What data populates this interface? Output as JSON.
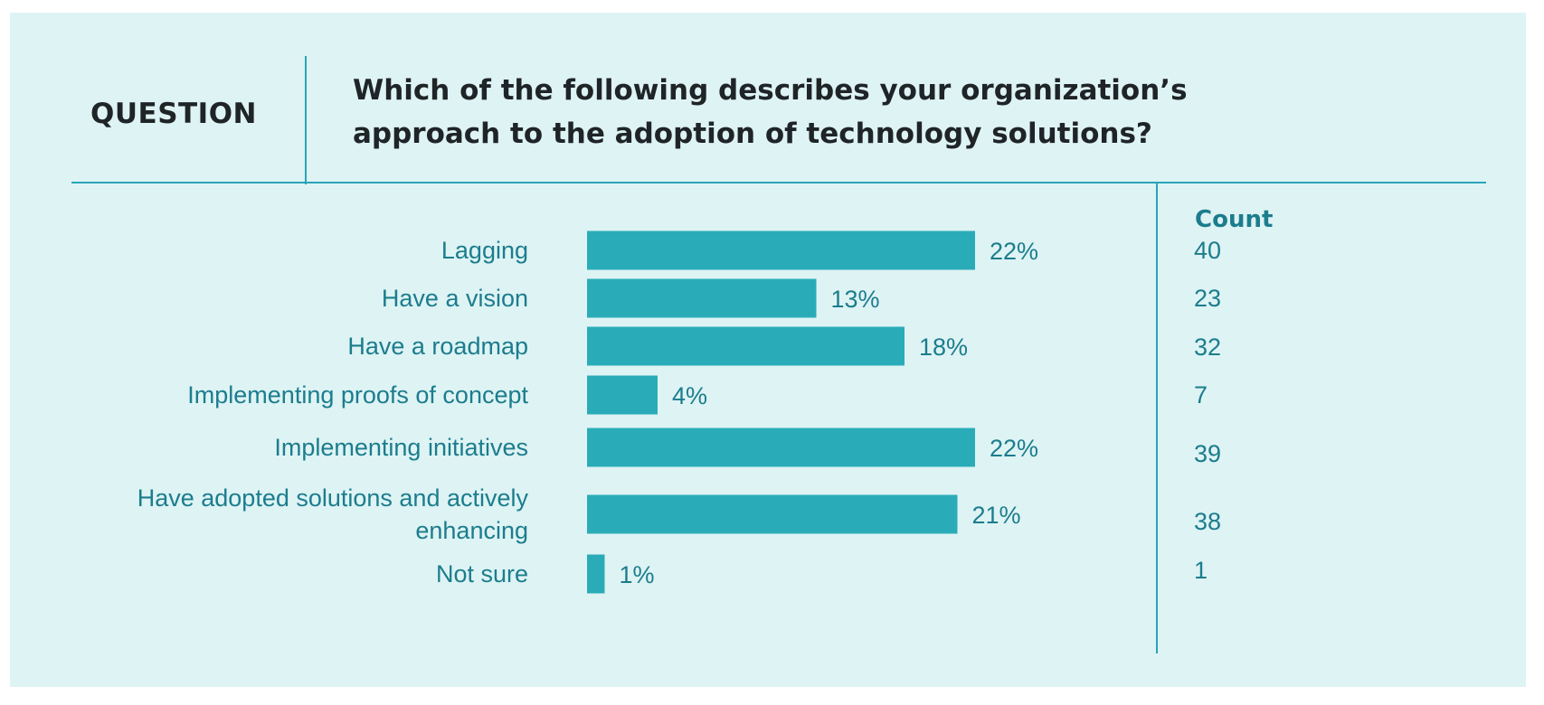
{
  "header": {
    "question_label": "QUESTION",
    "question_text": "Which of the following describes your organization’s approach to the adoption of technology solutions?",
    "count_header": "Count"
  },
  "colors": {
    "bar": "#2aacb8",
    "text": "#1b7d8d",
    "panel": "#def3f4"
  },
  "chart_data": {
    "type": "bar",
    "orientation": "horizontal",
    "categories": [
      "Lagging",
      "Have a vision",
      "Have a roadmap",
      "Implementing proofs of concept",
      "Implementing initiatives",
      "Have adopted solutions and actively enhancing",
      "Not sure"
    ],
    "values": [
      22,
      13,
      18,
      4,
      22,
      21,
      1
    ],
    "value_labels": [
      "22%",
      "13%",
      "18%",
      "4%",
      "22%",
      "21%",
      "1%"
    ],
    "counts": [
      "40",
      "23",
      "32",
      "7",
      "39",
      "38",
      "1"
    ],
    "unit": "%"
  }
}
